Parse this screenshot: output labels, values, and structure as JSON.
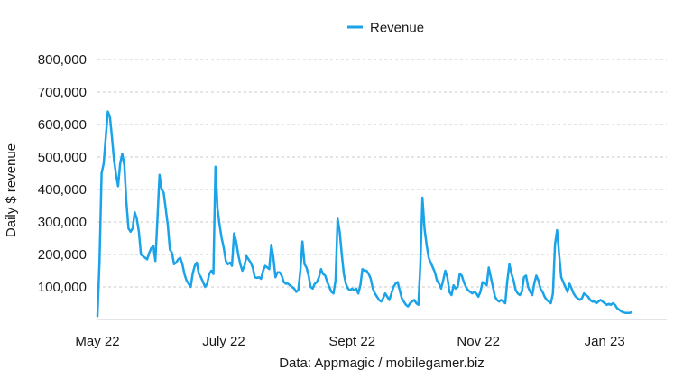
{
  "chart_data": {
    "type": "line",
    "title": "",
    "xlabel": "Data: Appmagic / mobilegamer.biz",
    "ylabel": "Daily $ revenue",
    "ylim": [
      0,
      800000
    ],
    "y_ticks": [
      100000,
      200000,
      300000,
      400000,
      500000,
      600000,
      700000,
      800000
    ],
    "y_tick_labels": [
      "100,000",
      "200,000",
      "300,000",
      "400,000",
      "500,000",
      "600,000",
      "700,000",
      "800,000"
    ],
    "x_tick_labels": [
      "May 22",
      "July 22",
      "Sept 22",
      "Nov 22",
      "Jan 23"
    ],
    "x_tick_dates": [
      "2022-05-01",
      "2022-07-01",
      "2022-09-01",
      "2022-11-01",
      "2023-01-01"
    ],
    "x_range": [
      "2022-05-01",
      "2023-01-31"
    ],
    "grid": "horizontal dashed",
    "legend_position": "top-center",
    "colors": {
      "line": "#1aa3e8",
      "grid": "#c8c8c8",
      "axis": "#c8c8c8"
    },
    "series": [
      {
        "name": "Revenue",
        "points": [
          [
            "2022-05-01",
            10000
          ],
          [
            "2022-05-02",
            180000
          ],
          [
            "2022-05-03",
            450000
          ],
          [
            "2022-05-04",
            480000
          ],
          [
            "2022-05-05",
            560000
          ],
          [
            "2022-05-06",
            640000
          ],
          [
            "2022-05-07",
            625000
          ],
          [
            "2022-05-08",
            560000
          ],
          [
            "2022-05-09",
            490000
          ],
          [
            "2022-05-10",
            445000
          ],
          [
            "2022-05-11",
            410000
          ],
          [
            "2022-05-12",
            480000
          ],
          [
            "2022-05-13",
            510000
          ],
          [
            "2022-05-14",
            475000
          ],
          [
            "2022-05-15",
            360000
          ],
          [
            "2022-05-16",
            280000
          ],
          [
            "2022-05-17",
            270000
          ],
          [
            "2022-05-18",
            280000
          ],
          [
            "2022-05-19",
            330000
          ],
          [
            "2022-05-20",
            310000
          ],
          [
            "2022-05-21",
            270000
          ],
          [
            "2022-05-22",
            200000
          ],
          [
            "2022-05-23",
            195000
          ],
          [
            "2022-05-24",
            190000
          ],
          [
            "2022-05-25",
            185000
          ],
          [
            "2022-05-26",
            205000
          ],
          [
            "2022-05-27",
            220000
          ],
          [
            "2022-05-28",
            225000
          ],
          [
            "2022-05-29",
            180000
          ],
          [
            "2022-05-30",
            310000
          ],
          [
            "2022-05-31",
            445000
          ],
          [
            "2022-06-01",
            400000
          ],
          [
            "2022-06-02",
            390000
          ],
          [
            "2022-06-03",
            340000
          ],
          [
            "2022-06-04",
            290000
          ],
          [
            "2022-06-05",
            215000
          ],
          [
            "2022-06-06",
            205000
          ],
          [
            "2022-06-07",
            170000
          ],
          [
            "2022-06-08",
            175000
          ],
          [
            "2022-06-09",
            185000
          ],
          [
            "2022-06-10",
            190000
          ],
          [
            "2022-06-11",
            170000
          ],
          [
            "2022-06-12",
            140000
          ],
          [
            "2022-06-13",
            120000
          ],
          [
            "2022-06-14",
            110000
          ],
          [
            "2022-06-15",
            100000
          ],
          [
            "2022-06-16",
            140000
          ],
          [
            "2022-06-17",
            165000
          ],
          [
            "2022-06-18",
            175000
          ],
          [
            "2022-06-19",
            140000
          ],
          [
            "2022-06-20",
            130000
          ],
          [
            "2022-06-21",
            115000
          ],
          [
            "2022-06-22",
            100000
          ],
          [
            "2022-06-23",
            110000
          ],
          [
            "2022-06-24",
            140000
          ],
          [
            "2022-06-25",
            150000
          ],
          [
            "2022-06-26",
            140000
          ],
          [
            "2022-06-27",
            470000
          ],
          [
            "2022-06-28",
            340000
          ],
          [
            "2022-06-29",
            290000
          ],
          [
            "2022-06-30",
            250000
          ],
          [
            "2022-07-01",
            220000
          ],
          [
            "2022-07-02",
            180000
          ],
          [
            "2022-07-03",
            170000
          ],
          [
            "2022-07-04",
            175000
          ],
          [
            "2022-07-05",
            165000
          ],
          [
            "2022-07-06",
            265000
          ],
          [
            "2022-07-07",
            240000
          ],
          [
            "2022-07-08",
            200000
          ],
          [
            "2022-07-09",
            170000
          ],
          [
            "2022-07-10",
            150000
          ],
          [
            "2022-07-11",
            165000
          ],
          [
            "2022-07-12",
            195000
          ],
          [
            "2022-07-13",
            185000
          ],
          [
            "2022-07-14",
            175000
          ],
          [
            "2022-07-15",
            160000
          ],
          [
            "2022-07-16",
            130000
          ],
          [
            "2022-07-17",
            128000
          ],
          [
            "2022-07-18",
            130000
          ],
          [
            "2022-07-19",
            125000
          ],
          [
            "2022-07-20",
            150000
          ],
          [
            "2022-07-21",
            165000
          ],
          [
            "2022-07-22",
            160000
          ],
          [
            "2022-07-23",
            155000
          ],
          [
            "2022-07-24",
            230000
          ],
          [
            "2022-07-25",
            190000
          ],
          [
            "2022-07-26",
            130000
          ],
          [
            "2022-07-27",
            145000
          ],
          [
            "2022-07-28",
            145000
          ],
          [
            "2022-07-29",
            135000
          ],
          [
            "2022-07-30",
            115000
          ],
          [
            "2022-07-31",
            110000
          ],
          [
            "2022-08-01",
            110000
          ],
          [
            "2022-08-02",
            105000
          ],
          [
            "2022-08-03",
            100000
          ],
          [
            "2022-08-04",
            95000
          ],
          [
            "2022-08-05",
            85000
          ],
          [
            "2022-08-06",
            90000
          ],
          [
            "2022-08-07",
            150000
          ],
          [
            "2022-08-08",
            240000
          ],
          [
            "2022-08-09",
            170000
          ],
          [
            "2022-08-10",
            160000
          ],
          [
            "2022-08-11",
            135000
          ],
          [
            "2022-08-12",
            100000
          ],
          [
            "2022-08-13",
            95000
          ],
          [
            "2022-08-14",
            110000
          ],
          [
            "2022-08-15",
            115000
          ],
          [
            "2022-08-16",
            130000
          ],
          [
            "2022-08-17",
            155000
          ],
          [
            "2022-08-18",
            140000
          ],
          [
            "2022-08-19",
            135000
          ],
          [
            "2022-08-20",
            115000
          ],
          [
            "2022-08-21",
            100000
          ],
          [
            "2022-08-22",
            85000
          ],
          [
            "2022-08-23",
            80000
          ],
          [
            "2022-08-24",
            120000
          ],
          [
            "2022-08-25",
            310000
          ],
          [
            "2022-08-26",
            270000
          ],
          [
            "2022-08-27",
            200000
          ],
          [
            "2022-08-28",
            140000
          ],
          [
            "2022-08-29",
            110000
          ],
          [
            "2022-08-30",
            95000
          ],
          [
            "2022-08-31",
            90000
          ],
          [
            "2022-09-01",
            95000
          ],
          [
            "2022-09-02",
            90000
          ],
          [
            "2022-09-03",
            95000
          ],
          [
            "2022-09-04",
            80000
          ],
          [
            "2022-09-05",
            105000
          ],
          [
            "2022-09-06",
            155000
          ],
          [
            "2022-09-07",
            150000
          ],
          [
            "2022-09-08",
            150000
          ],
          [
            "2022-09-09",
            140000
          ],
          [
            "2022-09-10",
            125000
          ],
          [
            "2022-09-11",
            95000
          ],
          [
            "2022-09-12",
            80000
          ],
          [
            "2022-09-13",
            70000
          ],
          [
            "2022-09-14",
            60000
          ],
          [
            "2022-09-15",
            55000
          ],
          [
            "2022-09-16",
            65000
          ],
          [
            "2022-09-17",
            80000
          ],
          [
            "2022-09-18",
            70000
          ],
          [
            "2022-09-19",
            60000
          ],
          [
            "2022-09-20",
            80000
          ],
          [
            "2022-09-21",
            100000
          ],
          [
            "2022-09-22",
            110000
          ],
          [
            "2022-09-23",
            115000
          ],
          [
            "2022-09-24",
            90000
          ],
          [
            "2022-09-25",
            65000
          ],
          [
            "2022-09-26",
            55000
          ],
          [
            "2022-09-27",
            45000
          ],
          [
            "2022-09-28",
            40000
          ],
          [
            "2022-09-29",
            50000
          ],
          [
            "2022-09-30",
            55000
          ],
          [
            "2022-10-01",
            60000
          ],
          [
            "2022-10-02",
            50000
          ],
          [
            "2022-10-03",
            45000
          ],
          [
            "2022-10-04",
            170000
          ],
          [
            "2022-10-05",
            375000
          ],
          [
            "2022-10-06",
            280000
          ],
          [
            "2022-10-07",
            230000
          ],
          [
            "2022-10-08",
            190000
          ],
          [
            "2022-10-09",
            175000
          ],
          [
            "2022-10-10",
            160000
          ],
          [
            "2022-10-11",
            145000
          ],
          [
            "2022-10-12",
            120000
          ],
          [
            "2022-10-13",
            110000
          ],
          [
            "2022-10-14",
            95000
          ],
          [
            "2022-10-15",
            120000
          ],
          [
            "2022-10-16",
            150000
          ],
          [
            "2022-10-17",
            130000
          ],
          [
            "2022-10-18",
            85000
          ],
          [
            "2022-10-19",
            75000
          ],
          [
            "2022-10-20",
            105000
          ],
          [
            "2022-10-21",
            95000
          ],
          [
            "2022-10-22",
            100000
          ],
          [
            "2022-10-23",
            140000
          ],
          [
            "2022-10-24",
            135000
          ],
          [
            "2022-10-25",
            115000
          ],
          [
            "2022-10-26",
            100000
          ],
          [
            "2022-10-27",
            90000
          ],
          [
            "2022-10-28",
            85000
          ],
          [
            "2022-10-29",
            80000
          ],
          [
            "2022-10-30",
            85000
          ],
          [
            "2022-10-31",
            80000
          ],
          [
            "2022-11-01",
            70000
          ],
          [
            "2022-11-02",
            85000
          ],
          [
            "2022-11-03",
            115000
          ],
          [
            "2022-11-04",
            110000
          ],
          [
            "2022-11-05",
            105000
          ],
          [
            "2022-11-06",
            160000
          ],
          [
            "2022-11-07",
            130000
          ],
          [
            "2022-11-08",
            100000
          ],
          [
            "2022-11-09",
            70000
          ],
          [
            "2022-11-10",
            60000
          ],
          [
            "2022-11-11",
            55000
          ],
          [
            "2022-11-12",
            60000
          ],
          [
            "2022-11-13",
            55000
          ],
          [
            "2022-11-14",
            50000
          ],
          [
            "2022-11-15",
            120000
          ],
          [
            "2022-11-16",
            170000
          ],
          [
            "2022-11-17",
            140000
          ],
          [
            "2022-11-18",
            120000
          ],
          [
            "2022-11-19",
            90000
          ],
          [
            "2022-11-20",
            80000
          ],
          [
            "2022-11-21",
            75000
          ],
          [
            "2022-11-22",
            85000
          ],
          [
            "2022-11-23",
            130000
          ],
          [
            "2022-11-24",
            135000
          ],
          [
            "2022-11-25",
            100000
          ],
          [
            "2022-11-26",
            85000
          ],
          [
            "2022-11-27",
            75000
          ],
          [
            "2022-11-28",
            110000
          ],
          [
            "2022-11-29",
            135000
          ],
          [
            "2022-11-30",
            120000
          ],
          [
            "2022-12-01",
            95000
          ],
          [
            "2022-12-02",
            85000
          ],
          [
            "2022-12-03",
            70000
          ],
          [
            "2022-12-04",
            60000
          ],
          [
            "2022-12-05",
            55000
          ],
          [
            "2022-12-06",
            50000
          ],
          [
            "2022-12-07",
            80000
          ],
          [
            "2022-12-08",
            230000
          ],
          [
            "2022-12-09",
            275000
          ],
          [
            "2022-12-10",
            200000
          ],
          [
            "2022-12-11",
            130000
          ],
          [
            "2022-12-12",
            115000
          ],
          [
            "2022-12-13",
            100000
          ],
          [
            "2022-12-14",
            85000
          ],
          [
            "2022-12-15",
            110000
          ],
          [
            "2022-12-16",
            95000
          ],
          [
            "2022-12-17",
            80000
          ],
          [
            "2022-12-18",
            70000
          ],
          [
            "2022-12-19",
            65000
          ],
          [
            "2022-12-20",
            60000
          ],
          [
            "2022-12-21",
            65000
          ],
          [
            "2022-12-22",
            80000
          ],
          [
            "2022-12-23",
            75000
          ],
          [
            "2022-12-24",
            70000
          ],
          [
            "2022-12-25",
            60000
          ],
          [
            "2022-12-26",
            55000
          ],
          [
            "2022-12-27",
            55000
          ],
          [
            "2022-12-28",
            50000
          ],
          [
            "2022-12-29",
            55000
          ],
          [
            "2022-12-30",
            60000
          ],
          [
            "2022-12-31",
            55000
          ],
          [
            "2023-01-01",
            50000
          ],
          [
            "2023-01-02",
            45000
          ],
          [
            "2023-01-03",
            48000
          ],
          [
            "2023-01-04",
            45000
          ],
          [
            "2023-01-05",
            50000
          ],
          [
            "2023-01-06",
            45000
          ],
          [
            "2023-01-07",
            35000
          ],
          [
            "2023-01-08",
            30000
          ],
          [
            "2023-01-09",
            25000
          ],
          [
            "2023-01-10",
            22000
          ],
          [
            "2023-01-11",
            20000
          ],
          [
            "2023-01-12",
            20000
          ],
          [
            "2023-01-13",
            20000
          ],
          [
            "2023-01-14",
            22000
          ]
        ]
      }
    ]
  }
}
